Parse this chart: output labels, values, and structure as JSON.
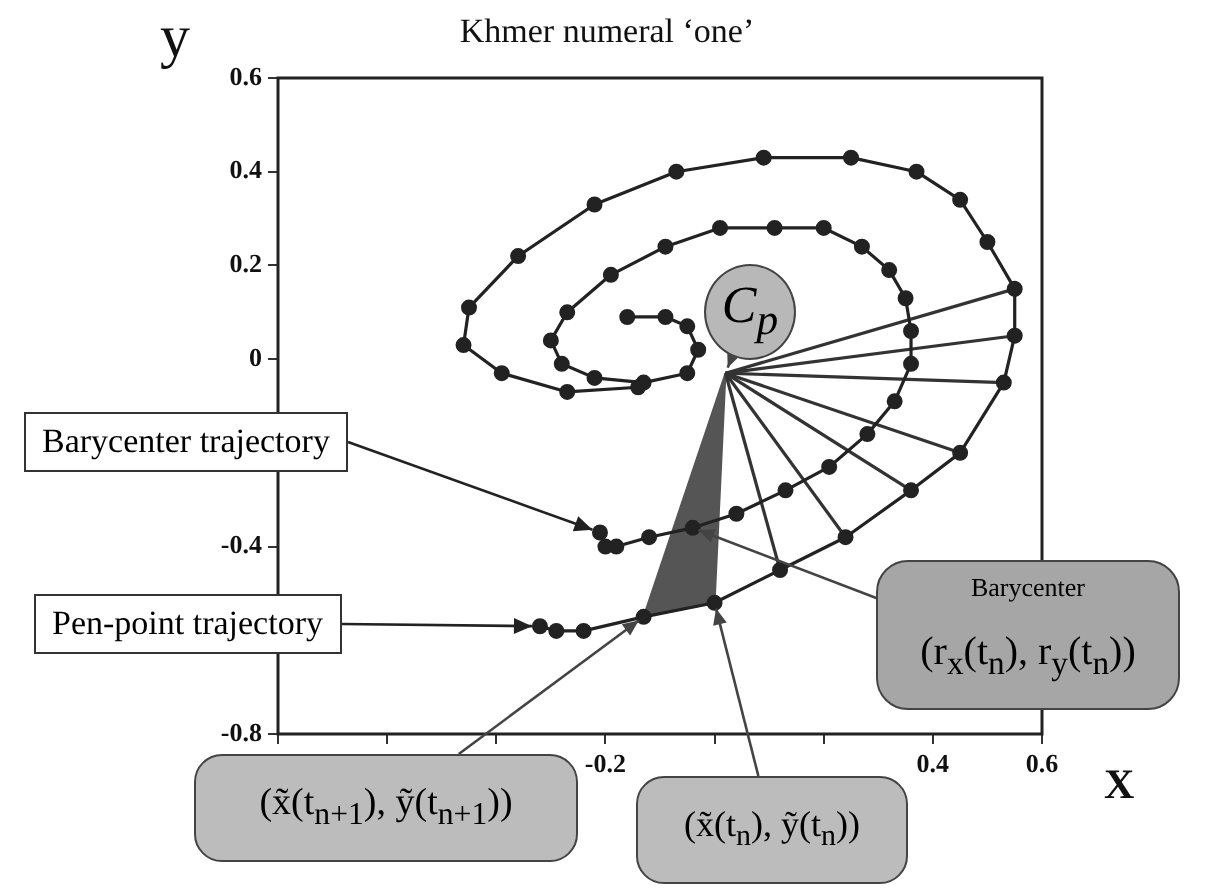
{
  "chart_data": {
    "type": "line",
    "title": "Khmer numeral ‘one’",
    "xlabel": "X",
    "ylabel": "y",
    "xlim": [
      -0.8,
      0.6
    ],
    "ylim": [
      -0.8,
      0.6
    ],
    "xticks": [
      {
        "value": -0.8,
        "label": null
      },
      {
        "value": -0.6,
        "label": null
      },
      {
        "value": -0.4,
        "label": null
      },
      -0.2,
      {
        "value": 0,
        "label": null
      },
      {
        "value": 0.2,
        "label": null
      },
      0.4,
      0.6
    ],
    "yticks": [
      -0.8,
      {
        "value": -0.6,
        "label": null
      },
      -0.4,
      {
        "value": -0.2,
        "label": null
      },
      0,
      0.2,
      0.4,
      0.6
    ],
    "grid": false,
    "series": [
      {
        "name": "Barycenter trajectory",
        "color": "#222222",
        "marker": "circle",
        "x": [
          -0.16,
          -0.09,
          -0.05,
          -0.03,
          -0.05,
          -0.13,
          -0.22,
          -0.28,
          -0.3,
          -0.27,
          -0.19,
          -0.09,
          0.01,
          0.11,
          0.2,
          0.27,
          0.32,
          0.35,
          0.36,
          0.36,
          0.33,
          0.28,
          0.21,
          0.13,
          0.04,
          -0.04,
          -0.12,
          -0.18,
          -0.2,
          -0.21
        ],
        "values": [
          0.09,
          0.09,
          0.07,
          0.02,
          -0.03,
          -0.05,
          -0.04,
          -0.01,
          0.04,
          0.1,
          0.18,
          0.24,
          0.28,
          0.28,
          0.28,
          0.24,
          0.19,
          0.13,
          0.06,
          -0.01,
          -0.09,
          -0.16,
          -0.23,
          -0.28,
          -0.33,
          -0.36,
          -0.38,
          -0.4,
          -0.4,
          -0.37
        ]
      },
      {
        "name": "Pen-point trajectory",
        "color": "#222222",
        "marker": "circle",
        "x": [
          -0.14,
          -0.27,
          -0.39,
          -0.46,
          -0.45,
          -0.36,
          -0.22,
          -0.07,
          0.09,
          0.25,
          0.37,
          0.45,
          0.5,
          0.55,
          0.55,
          0.53,
          0.45,
          0.36,
          0.24,
          0.12,
          0.0,
          -0.13,
          -0.24,
          -0.29,
          -0.32
        ],
        "values": [
          -0.06,
          -0.07,
          -0.03,
          0.03,
          0.11,
          0.22,
          0.33,
          0.4,
          0.43,
          0.43,
          0.4,
          0.34,
          0.25,
          0.15,
          0.05,
          -0.05,
          -0.2,
          -0.28,
          -0.38,
          -0.45,
          -0.52,
          -0.55,
          -0.58,
          -0.58,
          -0.57
        ]
      },
      {
        "color": "#333333",
        "marker": "none",
        "x": [
          0.02,
          0.55
        ],
        "values": [
          -0.03,
          0.15
        ]
      },
      {
        "color": "#333333",
        "marker": "none",
        "x": [
          0.02,
          0.55
        ],
        "values": [
          -0.03,
          0.05
        ]
      },
      {
        "color": "#333333",
        "marker": "none",
        "x": [
          0.02,
          0.53
        ],
        "values": [
          -0.03,
          -0.05
        ]
      },
      {
        "color": "#333333",
        "marker": "none",
        "x": [
          0.02,
          0.45
        ],
        "values": [
          -0.03,
          -0.2
        ]
      },
      {
        "color": "#333333",
        "marker": "none",
        "x": [
          0.02,
          0.36
        ],
        "values": [
          -0.03,
          -0.28
        ]
      },
      {
        "color": "#333333",
        "marker": "none",
        "x": [
          0.02,
          0.24
        ],
        "values": [
          -0.03,
          -0.38
        ]
      },
      {
        "color": "#333333",
        "marker": "none",
        "x": [
          0.02,
          0.12
        ],
        "values": [
          -0.03,
          -0.45
        ]
      },
      {
        "type": "area",
        "color": "#555555",
        "marker": "none",
        "x": [
          0.02,
          0.0,
          -0.13,
          0.02
        ],
        "values": [
          -0.03,
          -0.52,
          -0.55,
          -0.03
        ]
      }
    ],
    "annotations": [
      {
        "text": "C$_{p}$",
        "x": 0.02,
        "y": -0.03
      },
      "Barycenter",
      "(r$_{x}$(t$_{n}$), r$_{y}$(t$_{n}$))",
      {
        "text": "(x̃(t$_{n+1}$), ỹ(t$_{n+1}$))",
        "x": -0.13,
        "y": -0.55
      },
      {
        "text": "(x̃(t$_{n}$), ỹ(t$_{n}$))",
        "x": 0.0,
        "y": -0.52
      }
    ]
  }
}
